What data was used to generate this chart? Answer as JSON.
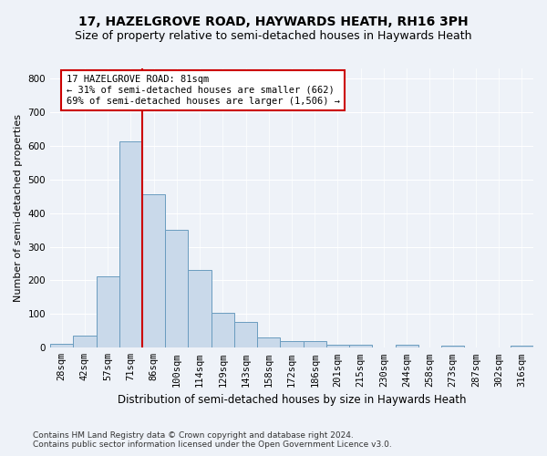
{
  "title": "17, HAZELGROVE ROAD, HAYWARDS HEATH, RH16 3PH",
  "subtitle": "Size of property relative to semi-detached houses in Haywards Heath",
  "xlabel": "Distribution of semi-detached houses by size in Haywards Heath",
  "ylabel": "Number of semi-detached properties",
  "footnote1": "Contains HM Land Registry data © Crown copyright and database right 2024.",
  "footnote2": "Contains public sector information licensed under the Open Government Licence v3.0.",
  "categories": [
    "28sqm",
    "42sqm",
    "57sqm",
    "71sqm",
    "86sqm",
    "100sqm",
    "114sqm",
    "129sqm",
    "143sqm",
    "158sqm",
    "172sqm",
    "186sqm",
    "201sqm",
    "215sqm",
    "230sqm",
    "244sqm",
    "258sqm",
    "273sqm",
    "287sqm",
    "302sqm",
    "316sqm"
  ],
  "values": [
    13,
    35,
    213,
    612,
    456,
    350,
    230,
    105,
    78,
    30,
    20,
    20,
    10,
    10,
    0,
    8,
    0,
    5,
    0,
    0,
    5
  ],
  "bar_color": "#c9d9ea",
  "bar_edge_color": "#6a9cbf",
  "red_line_x": 3.5,
  "annotation_text": "17 HAZELGROVE ROAD: 81sqm\n← 31% of semi-detached houses are smaller (662)\n69% of semi-detached houses are larger (1,506) →",
  "annotation_box_color": "#ffffff",
  "annotation_box_edge": "#cc0000",
  "red_line_color": "#cc0000",
  "ylim": [
    0,
    830
  ],
  "yticks": [
    0,
    100,
    200,
    300,
    400,
    500,
    600,
    700,
    800
  ],
  "title_fontsize": 10,
  "subtitle_fontsize": 9,
  "xlabel_fontsize": 8.5,
  "ylabel_fontsize": 8,
  "tick_fontsize": 7.5,
  "annotation_fontsize": 7.5,
  "footnote_fontsize": 6.5,
  "bg_color": "#eef2f8"
}
